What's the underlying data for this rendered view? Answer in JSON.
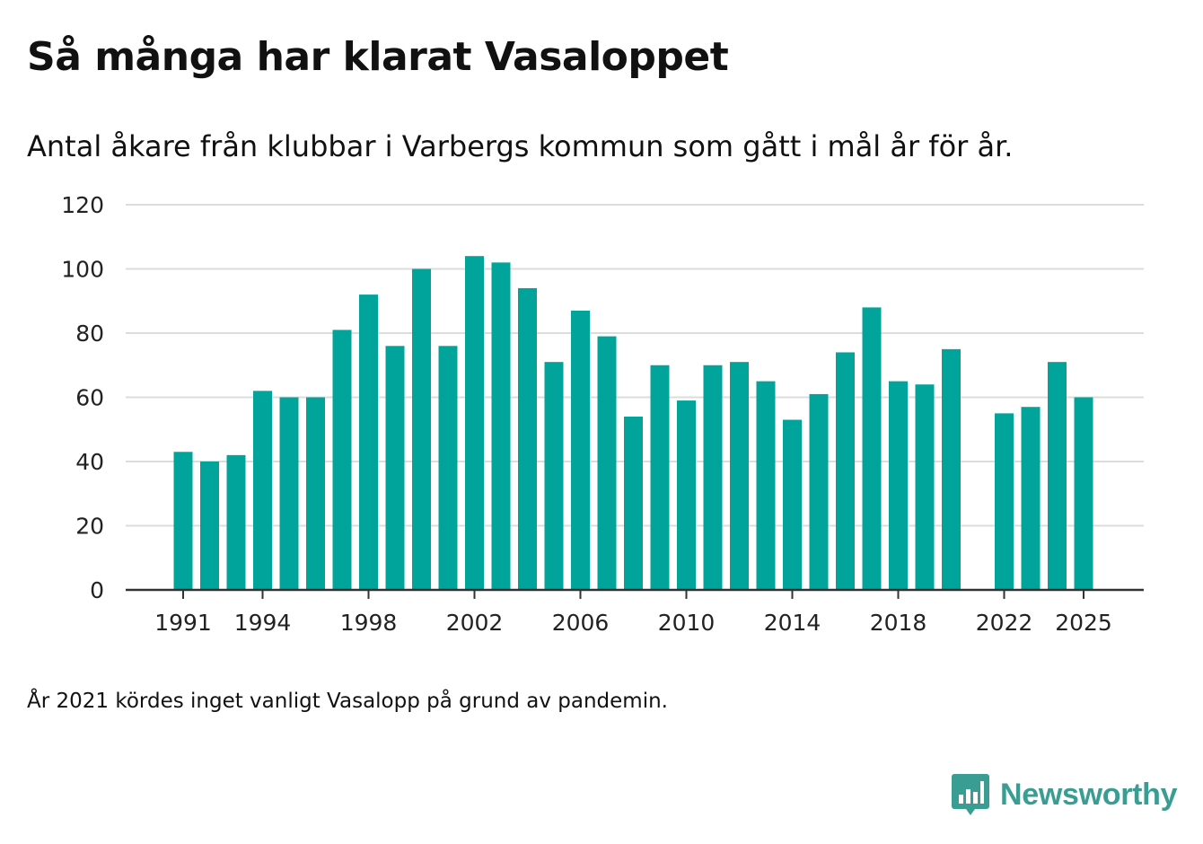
{
  "header": {
    "title": "Så många har klarat Vasaloppet",
    "subtitle": "Antal åkare från klubbar i Varbergs kommun som gått i mål år för år."
  },
  "footer": {
    "note": "År 2021 kördes inget vanligt Vasalopp på grund av pandemin.",
    "brand": "Newsworthy",
    "brand_icon": "bar-chart-speech-bubble-icon"
  },
  "colors": {
    "bar": "#00a49a",
    "grid": "#dcdcdc",
    "axis": "#333333",
    "brand": "#3a9d93"
  },
  "chart_data": {
    "type": "bar",
    "title": "Så många har klarat Vasaloppet",
    "subtitle": "Antal åkare från klubbar i Varbergs kommun som gått i mål år för år.",
    "xlabel": "",
    "ylabel": "",
    "ylim": [
      0,
      120
    ],
    "yticks": [
      0,
      20,
      40,
      60,
      80,
      100,
      120
    ],
    "xlim": [
      1990,
      2026
    ],
    "xticks": [
      1991,
      1994,
      1998,
      2002,
      2006,
      2010,
      2014,
      2018,
      2022,
      2025
    ],
    "grid": true,
    "x": [
      1991,
      1992,
      1993,
      1994,
      1995,
      1996,
      1997,
      1998,
      1999,
      2000,
      2001,
      2002,
      2003,
      2004,
      2005,
      2006,
      2007,
      2008,
      2009,
      2010,
      2011,
      2012,
      2013,
      2014,
      2015,
      2016,
      2017,
      2018,
      2019,
      2020,
      2022,
      2023,
      2024,
      2025
    ],
    "values": [
      43,
      40,
      42,
      62,
      60,
      60,
      81,
      92,
      76,
      100,
      76,
      104,
      102,
      94,
      71,
      87,
      79,
      54,
      70,
      59,
      70,
      71,
      65,
      53,
      61,
      74,
      88,
      65,
      64,
      75,
      55,
      57,
      71,
      60
    ]
  }
}
